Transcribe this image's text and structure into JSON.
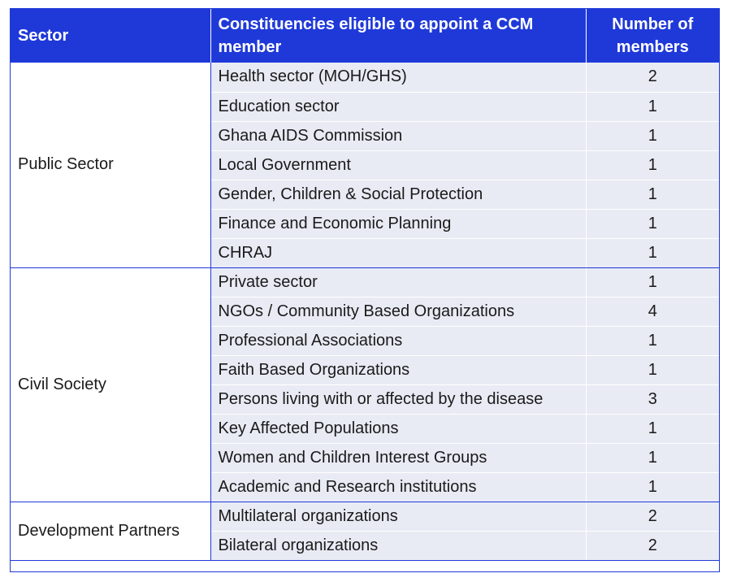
{
  "header": {
    "sector": "Sector",
    "constituencies": "Constituencies eligible to appoint a CCM member",
    "members": "Number of members"
  },
  "colors": {
    "header_bg": "#1f39d9",
    "row_bg": "#e8ebf4",
    "border": "#1f39d9"
  },
  "groups": [
    {
      "sector": "Public Sector",
      "rows": [
        {
          "constituency": "Health sector (MOH/GHS)",
          "members": "2"
        },
        {
          "constituency": "Education sector",
          "members": "1"
        },
        {
          "constituency": "Ghana AIDS Commission",
          "members": "1"
        },
        {
          "constituency": "Local Government",
          "members": "1"
        },
        {
          "constituency": "Gender, Children & Social Protection",
          "members": "1"
        },
        {
          "constituency": "Finance and Economic Planning",
          "members": "1"
        },
        {
          "constituency": "CHRAJ",
          "members": "1"
        }
      ]
    },
    {
      "sector": "Civil Society",
      "rows": [
        {
          "constituency": "Private sector",
          "members": "1"
        },
        {
          "constituency": "NGOs / Community Based Organizations",
          "members": "4"
        },
        {
          "constituency": "Professional Associations",
          "members": "1"
        },
        {
          "constituency": "Faith Based Organizations",
          "members": "1"
        },
        {
          "constituency": "Persons living with or affected by the disease",
          "members": "3"
        },
        {
          "constituency": "Key Affected Populations",
          "members": "1"
        },
        {
          "constituency": "Women and Children Interest Groups",
          "members": "1"
        },
        {
          "constituency": "Academic and Research institutions",
          "members": "1"
        }
      ]
    },
    {
      "sector": "Development Partners",
      "rows": [
        {
          "constituency": "Multilateral organizations",
          "members": "2"
        },
        {
          "constituency": "Bilateral organizations",
          "members": "2"
        }
      ]
    }
  ]
}
